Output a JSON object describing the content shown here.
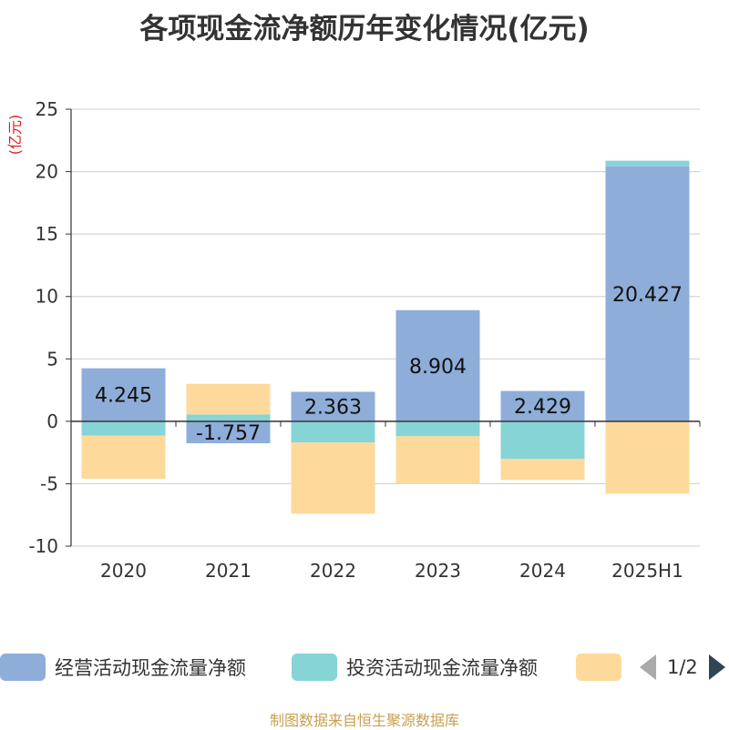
{
  "title": "各项现金流净额历年变化情况(亿元)",
  "footer": "制图数据来自恒生聚源数据库",
  "legend": {
    "items": [
      {
        "label": "经营活动现金流量净额",
        "color": "#8eadd9"
      },
      {
        "label": "投资活动现金流量净额",
        "color": "#87d4d6"
      },
      {
        "label": "",
        "color": "#fdd99b"
      }
    ],
    "page_text": "1/2"
  },
  "chart_data": {
    "type": "bar",
    "stacked": true,
    "unit_label": "(亿元)",
    "categories": [
      "2020",
      "2021",
      "2022",
      "2023",
      "2024",
      "2025H1"
    ],
    "ylim": [
      -10,
      25
    ],
    "yticks": [
      -10,
      -5,
      0,
      5,
      10,
      15,
      20,
      25
    ],
    "grid": true,
    "legend_position": "bottom",
    "series": [
      {
        "name": "经营活动现金流量净额",
        "color": "#8eadd9",
        "values": [
          4.245,
          -1.757,
          2.363,
          8.904,
          2.429,
          20.427
        ],
        "labels": [
          "4.245",
          "-1.757",
          "2.363",
          "8.904",
          "2.429",
          "20.427"
        ]
      },
      {
        "name": "投资活动现金流量净额",
        "color": "#87d4d6",
        "values": [
          -1.15,
          0.55,
          -1.7,
          -1.2,
          -3.0,
          0.45
        ]
      },
      {
        "color": "#fdd99b",
        "values": [
          -3.45,
          2.45,
          -5.7,
          -3.8,
          -1.7,
          -5.8
        ]
      }
    ]
  }
}
